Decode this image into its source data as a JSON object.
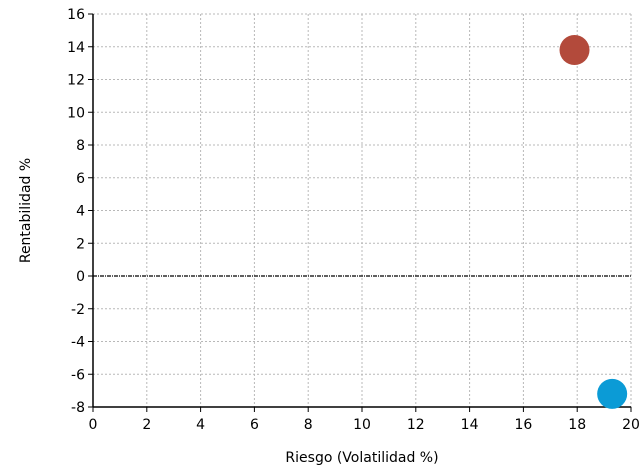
{
  "chart_data": {
    "type": "scatter",
    "title": "",
    "xlabel": "Riesgo (Volatilidad %)",
    "ylabel": "Rentabilidad %",
    "xlim": [
      0,
      20
    ],
    "ylim": [
      -8,
      16
    ],
    "x_ticks": [
      "0",
      "2",
      "4",
      "6",
      "8",
      "10",
      "12",
      "14",
      "16",
      "18",
      "20"
    ],
    "y_ticks": [
      "16",
      "14",
      "12",
      "10",
      "8",
      "6",
      "4",
      "2",
      "0",
      "-2",
      "-4",
      "-6",
      "-8"
    ],
    "grid": true,
    "zero_line": true,
    "series": [
      {
        "x": [
          17.9
        ],
        "y": [
          13.8
        ],
        "color": "#b34a3b"
      },
      {
        "x": [
          19.3
        ],
        "y": [
          -7.2
        ],
        "color": "#0b9bd6"
      }
    ]
  }
}
